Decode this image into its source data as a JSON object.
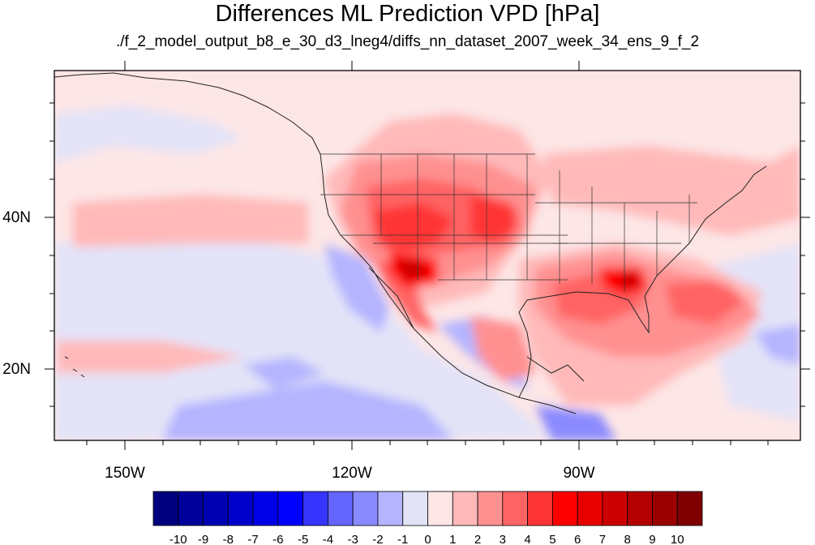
{
  "title": "Differences ML Prediction VPD [hPa]",
  "subtitle": "./f_2_model_output_b8_e_30_d3_lneg4/diffs_nn_dataset_2007_week_34_ens_9_f_2",
  "map": {
    "projection": "cylindrical-equidistant",
    "lon_range": [
      -160,
      -62
    ],
    "lat_range": [
      11,
      60
    ],
    "lon_ticks": [
      "150W",
      "120W",
      "90W"
    ],
    "lat_ticks": [
      "20N",
      "40N"
    ],
    "features": [
      "coastlines",
      "us-state-borders",
      "filled-contours"
    ]
  },
  "colorbar": {
    "levels": [
      "-10",
      "-9",
      "-8",
      "-7",
      "-6",
      "-5",
      "-4",
      "-3",
      "-2",
      "-1",
      "0",
      "1",
      "2",
      "3",
      "4",
      "5",
      "6",
      "7",
      "8",
      "9",
      "10"
    ],
    "colors": [
      "#00007f",
      "#00009a",
      "#0000b3",
      "#0000cc",
      "#0000e6",
      "#0000ff",
      "#3535ff",
      "#6464ff",
      "#8a8aff",
      "#b4b4ff",
      "#e3e3f8",
      "#fde6e6",
      "#ffb9b9",
      "#ff9090",
      "#ff6464",
      "#ff3535",
      "#ff0000",
      "#e60000",
      "#cc0000",
      "#b30000",
      "#9a0000",
      "#7f0000"
    ]
  }
}
